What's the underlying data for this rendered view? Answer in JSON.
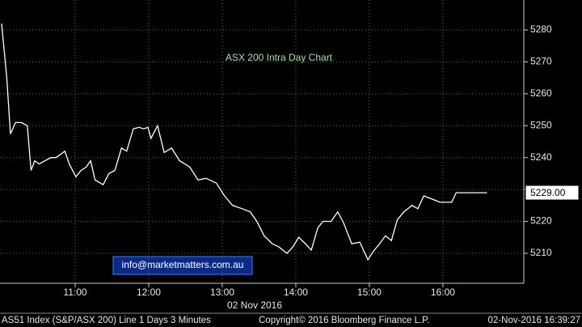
{
  "chart_data": {
    "type": "line",
    "title": "ASX 200 Intra Day Chart",
    "watermark": "info@marketmatters.com.au",
    "xlabel": "02 Nov 2016",
    "footer_left": "AS51 Index (S&P/ASX 200) Line 1 Days 3 Minutes",
    "footer_center": "Copyright© 2016 Bloomberg Finance L.P.",
    "footer_right": "02-Nov-2016 16:39:27",
    "color": "#ffffff",
    "grid": true,
    "x": [
      10.0,
      10.07,
      10.12,
      10.19,
      10.27,
      10.35,
      10.4,
      10.45,
      10.51,
      10.59,
      10.67,
      10.74,
      10.86,
      10.92,
      11.01,
      11.08,
      11.15,
      11.21,
      11.27,
      11.38,
      11.46,
      11.54,
      11.63,
      11.7,
      11.79,
      11.87,
      11.93,
      11.99,
      12.03,
      12.12,
      12.21,
      12.31,
      12.42,
      12.56,
      12.67,
      12.78,
      12.92,
      13.03,
      13.14,
      13.27,
      13.38,
      13.47,
      13.57,
      13.68,
      13.77,
      13.88,
      13.96,
      14.04,
      14.13,
      14.21,
      14.3,
      14.37,
      14.48,
      14.57,
      14.65,
      14.76,
      14.87,
      14.98,
      15.05,
      15.14,
      15.22,
      15.3,
      15.38,
      15.47,
      15.58,
      15.66,
      15.74,
      15.85,
      15.96,
      16.12,
      16.18,
      16.6
    ],
    "values": [
      5282,
      5265,
      5247.4,
      5251,
      5251,
      5250,
      5236,
      5239,
      5238,
      5239,
      5240,
      5240,
      5242,
      5238,
      5234,
      5236,
      5237,
      5239,
      5233,
      5231.5,
      5235,
      5236,
      5243,
      5242,
      5249,
      5249.5,
      5249,
      5249.5,
      5246,
      5250,
      5241.6,
      5243,
      5239,
      5237,
      5233,
      5233.5,
      5232,
      5228,
      5225,
      5224,
      5223,
      5220,
      5215.5,
      5213,
      5212,
      5210,
      5212,
      5215,
      5213,
      5211,
      5218,
      5220,
      5220,
      5223,
      5219.5,
      5213,
      5213.5,
      5208,
      5210.5,
      5213,
      5215.5,
      5214,
      5220.5,
      5223,
      5225,
      5224,
      5228,
      5227,
      5226,
      5226,
      5229,
      5229
    ],
    "last_label": {
      "value": 5229,
      "label": "5229.00"
    },
    "xlim": [
      9.978,
      17.1
    ],
    "ylim": [
      5200.6,
      5289.4
    ],
    "xticks": [
      {
        "value": 11,
        "label": "11:00"
      },
      {
        "value": 12,
        "label": "12:00"
      },
      {
        "value": 13,
        "label": "13:00"
      },
      {
        "value": 14,
        "label": "14:00"
      },
      {
        "value": 15,
        "label": "15:00"
      },
      {
        "value": 16,
        "label": "16:00"
      }
    ],
    "yticks": [
      5210,
      5220,
      5230,
      5240,
      5250,
      5260,
      5270,
      5280
    ]
  }
}
